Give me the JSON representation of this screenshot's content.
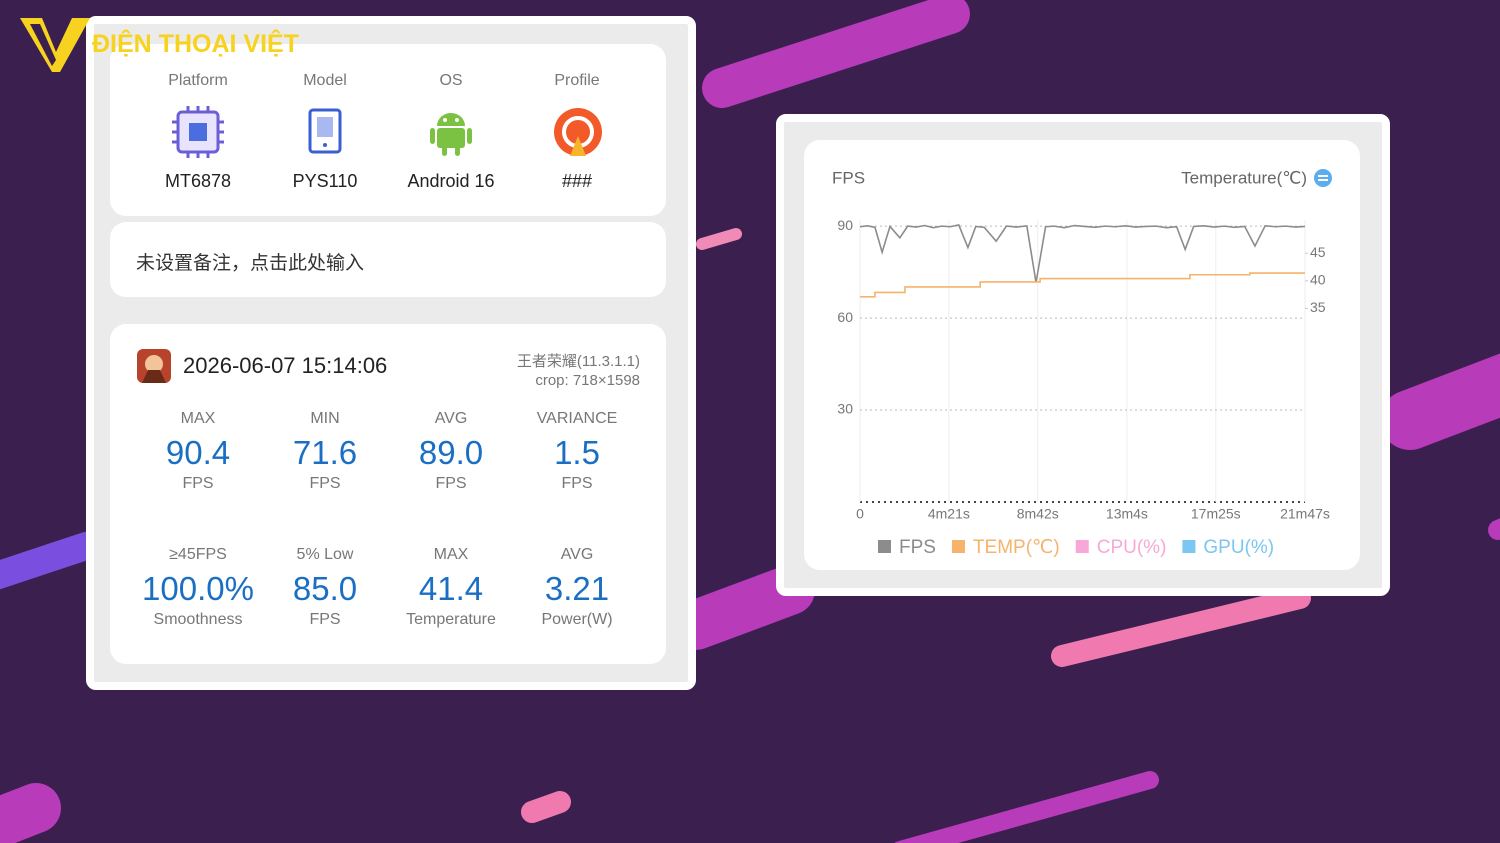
{
  "watermark": "ĐIỆN THOẠI VIỆT",
  "device": {
    "labels": [
      "Platform",
      "Model",
      "OS",
      "Profile"
    ],
    "values": [
      "MT6878",
      "PYS110",
      "Android 16",
      "###"
    ]
  },
  "note": "未设置备注，点击此处输入",
  "session": {
    "datetime": "2026-06-07 15:14:06",
    "game": "王者荣耀(11.3.1.1)",
    "crop": "crop: 718×1598",
    "stats": [
      {
        "label": "MAX",
        "value": "90.4",
        "unit": "FPS"
      },
      {
        "label": "MIN",
        "value": "71.6",
        "unit": "FPS"
      },
      {
        "label": "AVG",
        "value": "89.0",
        "unit": "FPS"
      },
      {
        "label": "VARIANCE",
        "value": "1.5",
        "unit": "FPS"
      },
      {
        "label": "≥45FPS",
        "value": "100.0%",
        "unit": "Smoothness"
      },
      {
        "label": "5% Low",
        "value": "85.0",
        "unit": "FPS"
      },
      {
        "label": "MAX",
        "value": "41.4",
        "unit": "Temperature"
      },
      {
        "label": "AVG",
        "value": "3.21",
        "unit": "Power(W)"
      }
    ]
  },
  "chart_data": {
    "type": "line",
    "ylabel": "FPS",
    "y2label": "Temperature(℃)",
    "xlim": [
      0,
      1307
    ],
    "xticks": [
      0,
      {
        "value": 261,
        "label": "4m21s"
      },
      {
        "value": 522,
        "label": "8m42s"
      },
      {
        "value": 784,
        "label": "13m4s"
      },
      {
        "value": 1045,
        "label": "17m25s"
      },
      {
        "value": 1307,
        "label": "21m47s"
      }
    ],
    "ylim": [
      0,
      92
    ],
    "yticks": [
      30,
      60,
      90
    ],
    "y2lim": [
      0,
      51
    ],
    "y2ticks": [
      35,
      40,
      45
    ],
    "grid": true,
    "series": [
      {
        "name": "FPS",
        "color": "#8c8c8c",
        "x": [
          0,
          22,
          44,
          65,
          88,
          117,
          140,
          165,
          190,
          215,
          240,
          265,
          290,
          317,
          340,
          365,
          400,
          430,
          460,
          490,
          517,
          545,
          570,
          600,
          630,
          660,
          690,
          720,
          750,
          780,
          810,
          840,
          870,
          900,
          930,
          955,
          980,
          1010,
          1040,
          1070,
          1100,
          1130,
          1160,
          1190,
          1220,
          1250,
          1280,
          1307
        ],
        "values": [
          89.8,
          90.1,
          89.6,
          81.5,
          89.9,
          86.2,
          90.0,
          89.7,
          90.2,
          89.5,
          90.0,
          89.8,
          90.4,
          83.0,
          89.9,
          89.6,
          85.1,
          90.0,
          89.7,
          90.1,
          71.6,
          89.8,
          90.0,
          89.5,
          90.2,
          89.9,
          89.6,
          90.0,
          89.8,
          90.1,
          89.7,
          89.9,
          90.0,
          89.5,
          89.8,
          82.4,
          89.9,
          90.1,
          89.7,
          90.0,
          89.6,
          89.9,
          83.5,
          90.1,
          89.8,
          90.0,
          89.7,
          89.9
        ]
      },
      {
        "name": "TEMP(℃)",
        "color": "#f5b36b",
        "axis": "y2",
        "x": [
          0,
          44,
          44,
          132,
          132,
          353,
          353,
          529,
          529,
          969,
          969,
          1145,
          1145,
          1307
        ],
        "values": [
          37.1,
          37.1,
          37.9,
          37.9,
          38.9,
          38.9,
          39.8,
          39.8,
          40.4,
          40.4,
          41.1,
          41.1,
          41.4,
          41.4
        ]
      },
      {
        "name": "CPU(%)",
        "color": "#f7a8d8"
      },
      {
        "name": "GPU(%)",
        "color": "#7cc6f2"
      }
    ]
  }
}
